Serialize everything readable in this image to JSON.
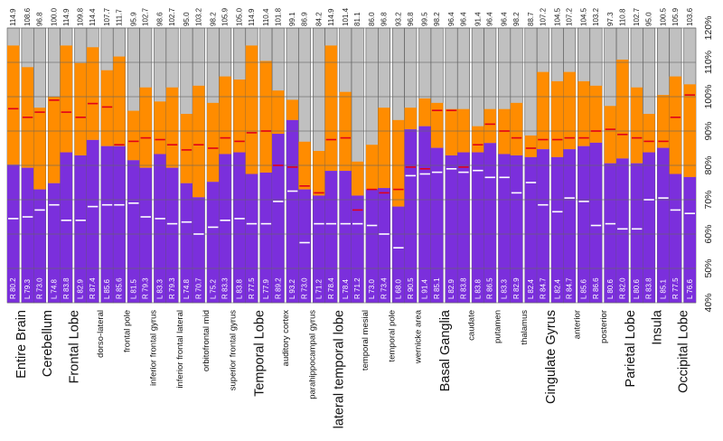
{
  "chart_data": {
    "type": "bar",
    "description_series": [
      "R",
      "L"
    ],
    "ylim": [
      40,
      120
    ],
    "y_ticks": [
      "40%",
      "50%",
      "60%",
      "70%",
      "80%",
      "90%",
      "100%",
      "110%",
      "120%"
    ],
    "colors": {
      "purple": "#7b2fdc",
      "orange": "#ff8c00",
      "gray": "#c0c0c0",
      "red_marker": "#e0001a",
      "white_marker": "#ffffff",
      "border": "#555555",
      "grid": "#666666"
    },
    "regions": [
      {
        "name": "Entire Brain",
        "major": true,
        "R": {
          "low": 80.2,
          "high": 114.9
        },
        "L": {
          "low": 79.3,
          "high": 108.6
        },
        "red": [
          96.5,
          94
        ],
        "white": [
          64.5,
          65
        ]
      },
      {
        "name": "Cerebellum",
        "major": true,
        "R": {
          "low": 73.0,
          "high": 96.8
        },
        "L": {
          "low": 74.8,
          "high": 100.0
        },
        "red": [
          95.5,
          99
        ],
        "white": [
          67,
          68.5
        ]
      },
      {
        "name": "Frontal Lobe",
        "major": true,
        "R": {
          "low": 83.8,
          "high": 114.9
        },
        "L": {
          "low": 82.9,
          "high": 109.8
        },
        "red": [
          95.5,
          94
        ],
        "white": [
          64,
          64
        ]
      },
      {
        "name": "dorso-lateral",
        "major": false,
        "R": {
          "low": 87.4,
          "high": 114.4
        },
        "L": {
          "low": 85.6,
          "high": 107.7
        },
        "red": [
          98,
          97
        ],
        "white": [
          68,
          68.5
        ]
      },
      {
        "name": "frontal pole",
        "major": false,
        "R": {
          "low": 85.6,
          "high": 111.7
        },
        "L": {
          "low": 81.5,
          "high": 95.9
        },
        "red": [
          86,
          87
        ],
        "white": [
          68.5,
          69
        ]
      },
      {
        "name": "inferior frontal gyrus",
        "major": false,
        "R": {
          "low": 79.3,
          "high": 102.7
        },
        "L": {
          "low": 83.3,
          "high": 98.6
        },
        "red": [
          88,
          87.5
        ],
        "white": [
          65,
          64.5
        ]
      },
      {
        "name": "inferior frontal lateral",
        "major": false,
        "R": {
          "low": 79.3,
          "high": 102.7
        },
        "L": {
          "low": 74.8,
          "high": 95.0
        },
        "red": [
          86,
          84.5
        ],
        "white": [
          63,
          63.5
        ]
      },
      {
        "name": "orbitofrontal mid",
        "major": false,
        "R": {
          "low": 70.7,
          "high": 103.2
        },
        "L": {
          "low": 75.2,
          "high": 98.2
        },
        "red": [
          86,
          85
        ],
        "white": [
          60,
          62
        ]
      },
      {
        "name": "superior frontal gyrus",
        "major": false,
        "R": {
          "low": 83.3,
          "high": 105.9
        },
        "L": {
          "low": 83.8,
          "high": 105.0
        },
        "red": [
          88,
          87
        ],
        "white": [
          64,
          64.5
        ]
      },
      {
        "name": "Temporal Lobe",
        "major": true,
        "R": {
          "low": 77.5,
          "high": 114.9
        },
        "L": {
          "low": 77.9,
          "high": 110.4
        },
        "red": [
          89.5,
          90
        ],
        "white": [
          63,
          63
        ]
      },
      {
        "name": "auditory cortex",
        "major": false,
        "R": {
          "low": 89.2,
          "high": 101.8
        },
        "L": {
          "low": 93.2,
          "high": 99.1
        },
        "red": [
          80,
          79.5
        ],
        "white": [
          69.5,
          72.5
        ]
      },
      {
        "name": "parahippocampal gyrus",
        "major": false,
        "R": {
          "low": 73.0,
          "high": 86.9
        },
        "L": {
          "low": 71.2,
          "high": 84.2
        },
        "red": [
          74,
          72
        ],
        "white": [
          57.5,
          63
        ]
      },
      {
        "name": "lateral temporal lobe",
        "major": true,
        "R": {
          "low": 78.4,
          "high": 114.9
        },
        "L": {
          "low": 78.4,
          "high": 101.4
        },
        "red": [
          87.5,
          88
        ],
        "white": [
          63,
          63
        ]
      },
      {
        "name": "temporal mesial",
        "major": false,
        "R": {
          "low": 71.2,
          "high": 81.1
        },
        "L": {
          "low": 73.0,
          "high": 86.0
        },
        "red": [
          67,
          73
        ],
        "white": [
          63,
          62.5
        ]
      },
      {
        "name": "temporal pole",
        "major": false,
        "R": {
          "low": 73.4,
          "high": 96.8
        },
        "L": {
          "low": 68.0,
          "high": 93.2
        },
        "red": [
          72,
          73
        ],
        "white": [
          60,
          56
        ]
      },
      {
        "name": "wernicke area",
        "major": false,
        "R": {
          "low": 90.5,
          "high": 96.8
        },
        "L": {
          "low": 91.4,
          "high": 99.5
        },
        "red": [
          79.5,
          79
        ],
        "white": [
          77,
          77.5
        ]
      },
      {
        "name": "Basal Ganglia",
        "major": true,
        "R": {
          "low": 85.1,
          "high": 98.2
        },
        "L": {
          "low": 82.9,
          "high": 96.4
        },
        "red": [
          96,
          96
        ],
        "white": [
          78,
          79
        ]
      },
      {
        "name": "caudate",
        "major": false,
        "R": {
          "low": 83.8,
          "high": 96.4
        },
        "L": {
          "low": 83.8,
          "high": 91.4
        },
        "red": [
          79.5,
          86
        ],
        "white": [
          78,
          78.5
        ]
      },
      {
        "name": "putamen",
        "major": false,
        "R": {
          "low": 86.5,
          "high": 96.4
        },
        "L": {
          "low": 83.3,
          "high": 96.4
        },
        "red": [
          92,
          90
        ],
        "white": [
          76.5,
          76.5
        ]
      },
      {
        "name": "thalamus",
        "major": false,
        "R": {
          "low": 82.9,
          "high": 98.2
        },
        "L": {
          "low": 82.4,
          "high": 88.7
        },
        "red": [
          88,
          85
        ],
        "white": [
          72,
          75
        ]
      },
      {
        "name": "Cingulate Gyrus",
        "major": true,
        "R": {
          "low": 84.7,
          "high": 107.2
        },
        "L": {
          "low": 82.4,
          "high": 104.5
        },
        "red": [
          87.5,
          87.5
        ],
        "white": [
          68.5,
          66.5
        ]
      },
      {
        "name": "anterior",
        "major": false,
        "R": {
          "low": 84.7,
          "high": 107.2
        },
        "L": {
          "low": 85.6,
          "high": 104.5
        },
        "red": [
          88,
          88
        ],
        "white": [
          70.5,
          69.5
        ]
      },
      {
        "name": "posterior",
        "major": false,
        "R": {
          "low": 86.6,
          "high": 103.2
        },
        "L": {
          "low": 80.6,
          "high": 97.3
        },
        "red": [
          90,
          90.5
        ],
        "white": [
          62.5,
          63
        ]
      },
      {
        "name": "Parietal Lobe",
        "major": true,
        "R": {
          "low": 82.0,
          "high": 110.8
        },
        "L": {
          "low": 80.6,
          "high": 102.7
        },
        "red": [
          89,
          88
        ],
        "white": [
          61.5,
          61.5
        ]
      },
      {
        "name": "Insula",
        "major": true,
        "R": {
          "low": 83.8,
          "high": 95.0
        },
        "L": {
          "low": 85.1,
          "high": 100.5
        },
        "red": [
          87,
          87
        ],
        "white": [
          70,
          70.5
        ]
      },
      {
        "name": "Occipital Lobe",
        "major": true,
        "R": {
          "low": 77.5,
          "high": 105.9
        },
        "L": {
          "low": 76.6,
          "high": 103.6
        },
        "red": [
          94,
          100.5
        ],
        "white": [
          67,
          66
        ]
      }
    ]
  }
}
